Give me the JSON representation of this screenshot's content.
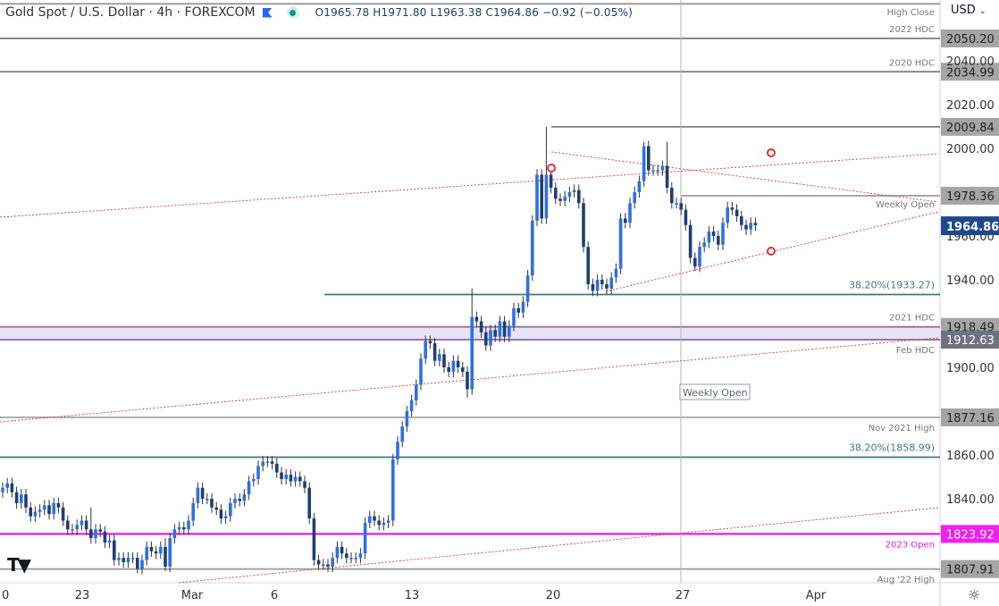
{
  "header": {
    "title": "Gold Spot / U.S. Dollar · 4h · FOREXCOM",
    "open": "O1965.78",
    "high": "H1971.80",
    "low": "L1963.38",
    "close": "C1964.86",
    "change": "−0.92 (−0.05%)",
    "flag_icon": "flag-icon",
    "status_icon": "market-open-dot"
  },
  "price_axis": {
    "currency": "USD",
    "ticks": [
      "2040.00",
      "2020.00",
      "2000.00",
      "1960.00",
      "1940.00",
      "1900.00",
      "1860.00",
      "1840.00"
    ],
    "tick_values": [
      2040,
      2020,
      2000,
      1960,
      1940,
      1900,
      1860,
      1840
    ]
  },
  "time_axis": {
    "labels": [
      "0",
      "23",
      "Mar",
      "6",
      "13",
      "20",
      "27",
      "Apr"
    ]
  },
  "levels": [
    {
      "price": 2066,
      "label": "High Close",
      "tag": "",
      "color": "#9598a1"
    },
    {
      "price": 2050.2,
      "label": "2022 HDC",
      "tag": "2050.20",
      "color": "#7b7b7b"
    },
    {
      "price": 2034.99,
      "label": "2020 HDC",
      "tag": "2034.99",
      "color": "#7b7b7b"
    },
    {
      "price": 2009.84,
      "label": "",
      "tag": "2009.84",
      "color": "#7b7b7b"
    },
    {
      "price": 1978.36,
      "label": "Weekly Open",
      "tag": "1978.36",
      "color": "#999999"
    },
    {
      "price": 1933.27,
      "label": "38.20%(1933.27)",
      "tag": "",
      "color": "#3d7a82"
    },
    {
      "price": 1918.49,
      "label": "2021 HDC",
      "tag": "1918.49",
      "color": "#8e6fa6"
    },
    {
      "price": 1912.63,
      "label": "Feb HDC",
      "tag": "1912.63",
      "color": "#8e6fa6"
    },
    {
      "price": 1877.16,
      "label": "Nov 2021 High",
      "tag": "1877.16",
      "color": "#aaaaaa"
    },
    {
      "price": 1858.99,
      "label": "38.20%(1858.99)",
      "tag": "",
      "color": "#3d7a82"
    },
    {
      "price": 1823.92,
      "label": "2023 Open",
      "tag": "1823.92",
      "color": "#e91ee0"
    },
    {
      "price": 1807.91,
      "label": "Aug '22 High",
      "tag": "1807.91",
      "color": "#999999"
    }
  ],
  "last_price": {
    "value": "1964.86",
    "color": "#1e4a8c"
  },
  "weekly_open_marker": "Weekly Open",
  "colors": {
    "up": "#2f6fe4",
    "down": "#1d3f73",
    "trendline": "#e0474c"
  },
  "chart_data": {
    "type": "candlestick",
    "first_open": 1843,
    "close": [
      1845,
      1847,
      1843,
      1838,
      1842,
      1836,
      1832,
      1834,
      1835,
      1837,
      1833,
      1838,
      1836,
      1830,
      1826,
      1826,
      1828,
      1830,
      1826,
      1822,
      1826,
      1825,
      1820,
      1821,
      1812,
      1813,
      1811,
      1813,
      1813,
      1808,
      1812,
      1818,
      1816,
      1815,
      1818,
      1809,
      1822,
      1826,
      1827,
      1826,
      1830,
      1838,
      1845,
      1840,
      1840,
      1836,
      1835,
      1831,
      1832,
      1838,
      1840,
      1839,
      1842,
      1848,
      1849,
      1855,
      1857,
      1857,
      1856,
      1852,
      1849,
      1851,
      1848,
      1850,
      1848,
      1845,
      1831,
      1812,
      1810,
      1810,
      1809,
      1813,
      1818,
      1815,
      1813,
      1813,
      1813,
      1815,
      1829,
      1832,
      1830,
      1828,
      1829,
      1830,
      1858,
      1866,
      1873,
      1880,
      1885,
      1892,
      1904,
      1912,
      1911,
      1903,
      1906,
      1900,
      1898,
      1903,
      1900,
      1898,
      1890,
      1923,
      1921,
      1916,
      1910,
      1917,
      1914,
      1921,
      1914,
      1919,
      1927,
      1925,
      1930,
      1942,
      1967,
      1988,
      1968,
      1988,
      1982,
      1977,
      1976,
      1978,
      1980,
      1981,
      1975,
      1955,
      1938,
      1935,
      1940,
      1938,
      1936,
      1941,
      1945,
      1968,
      1966,
      1975,
      1980,
      1985,
      2001,
      1990,
      1990,
      1990,
      1992,
      1982,
      1975,
      1975,
      1972,
      1965,
      1950,
      1946,
      1955,
      1957,
      1962,
      1960,
      1956,
      1966,
      1973,
      1972,
      1969,
      1965,
      1963,
      1966,
      1964.86
    ],
    "notable_highs": {
      "101": 1936,
      "117": 2009.84,
      "138": 2003,
      "143": 2003,
      "19": 1836,
      "35": 1822
    },
    "notable_lows": {
      "29": 1806,
      "35": 1807,
      "100": 1886,
      "130": 1933.27,
      "149": 1944
    },
    "y_range": [
      1800,
      2068
    ],
    "x_labels": [
      "0",
      "23",
      "Mar",
      "6",
      "13",
      "20",
      "27",
      "Apr"
    ]
  }
}
